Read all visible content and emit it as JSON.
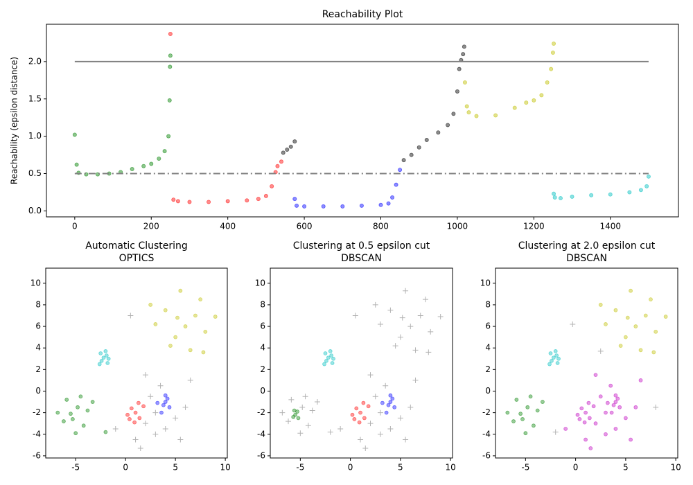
{
  "chart_data": [
    {
      "type": "scatter",
      "title": "Reachability Plot",
      "y_label": "Reachability (epsilon distance)",
      "xlim": [
        -74,
        1578
      ],
      "ylim": [
        -0.08,
        2.5
      ],
      "xticks": [
        0,
        200,
        400,
        600,
        800,
        1000,
        1200,
        1400
      ],
      "yticks": [
        {
          "value": 0,
          "label": "0.0"
        },
        {
          "value": 0.5,
          "label": "0.5"
        },
        {
          "value": 1,
          "label": "1.0"
        },
        {
          "value": 1.5,
          "label": "1.5"
        },
        {
          "value": 2,
          "label": "2.0"
        }
      ],
      "hlines": [
        {
          "y": 2,
          "xmin": 0,
          "xmax": 1500,
          "style": "solid",
          "color": "#808080"
        },
        {
          "y": 0.5,
          "xmin": 0,
          "xmax": 1500,
          "style": "dashdot",
          "color": "#808080"
        }
      ],
      "series": [
        {
          "color": "#008000",
          "marker": "o",
          "alpha": 0.45,
          "x": [
            0,
            5,
            10,
            30,
            60,
            90,
            120,
            150,
            180,
            200,
            220,
            235,
            245,
            248,
            249,
            250
          ],
          "y": [
            1.02,
            0.62,
            0.51,
            0.49,
            0.49,
            0.5,
            0.52,
            0.56,
            0.6,
            0.63,
            0.7,
            0.8,
            1.0,
            1.48,
            1.93,
            2.08
          ]
        },
        {
          "color": "#ff0000",
          "marker": "o",
          "alpha": 0.45,
          "x": [
            250,
            258,
            270,
            300,
            350,
            400,
            450,
            480,
            500,
            515,
            525,
            530,
            540
          ],
          "y": [
            2.37,
            0.15,
            0.13,
            0.12,
            0.12,
            0.13,
            0.14,
            0.16,
            0.2,
            0.33,
            0.52,
            0.6,
            0.66
          ]
        },
        {
          "color": "#000000",
          "marker": "o",
          "alpha": 0.45,
          "x": [
            545,
            555,
            565,
            575,
            860,
            880,
            900,
            920,
            950,
            975,
            990,
            1000,
            1005,
            1010,
            1015,
            1018
          ],
          "y": [
            0.78,
            0.82,
            0.86,
            0.93,
            0.68,
            0.75,
            0.85,
            0.95,
            1.05,
            1.15,
            1.3,
            1.6,
            1.9,
            2.02,
            2.1,
            2.2
          ]
        },
        {
          "color": "#0000ff",
          "marker": "o",
          "alpha": 0.45,
          "x": [
            575,
            580,
            600,
            650,
            700,
            750,
            800,
            820,
            830,
            840,
            850
          ],
          "y": [
            0.16,
            0.07,
            0.06,
            0.06,
            0.06,
            0.07,
            0.08,
            0.1,
            0.18,
            0.35,
            0.55
          ]
        },
        {
          "color": "#bfbf00",
          "marker": "o",
          "alpha": 0.45,
          "x": [
            1020,
            1025,
            1030,
            1050,
            1100,
            1150,
            1180,
            1200,
            1220,
            1235,
            1245,
            1250,
            1252
          ],
          "y": [
            1.72,
            1.4,
            1.32,
            1.27,
            1.28,
            1.38,
            1.45,
            1.48,
            1.55,
            1.72,
            1.9,
            2.12,
            2.24
          ]
        },
        {
          "color": "#00bfbf",
          "marker": "o",
          "alpha": 0.45,
          "x": [
            1252,
            1255,
            1270,
            1300,
            1350,
            1400,
            1450,
            1480,
            1495,
            1500
          ],
          "y": [
            0.23,
            0.18,
            0.17,
            0.19,
            0.21,
            0.22,
            0.25,
            0.28,
            0.33,
            0.46
          ]
        }
      ]
    },
    {
      "type": "scatter",
      "title": "Automatic Clustering",
      "subtitle": "OPTICS",
      "xlim": [
        -8,
        10.2
      ],
      "ylim": [
        -6.2,
        11.4
      ],
      "xticks": [
        -5,
        0,
        5,
        10
      ],
      "yticks": [
        -6,
        -4,
        -2,
        0,
        2,
        4,
        6,
        8,
        10
      ],
      "series": [
        {
          "color": "#008000",
          "marker": "o",
          "alpha": 0.4,
          "x": [
            -5.5,
            -4.8,
            -6.2,
            -4.2,
            -5.9,
            -3.8,
            -6.8,
            -5,
            -4.5,
            -5.3,
            -2,
            -3.3
          ],
          "y": [
            -2.1,
            -1.5,
            -2.8,
            -3.2,
            -0.8,
            -1.8,
            -2,
            -3.9,
            -0.5,
            -2.6,
            -3.8,
            -1
          ]
        },
        {
          "color": "#00bfbf",
          "marker": "o",
          "alpha": 0.4,
          "x": [
            -2.2,
            -1.8,
            -2.5,
            -1.9,
            -2.4,
            -2,
            -2.6,
            -1.7
          ],
          "y": [
            3.1,
            2.6,
            3.5,
            3.3,
            2.8,
            3.7,
            2.5,
            3
          ]
        },
        {
          "color": "#ff0000",
          "marker": "o",
          "alpha": 0.4,
          "x": [
            1,
            0.6,
            1.4,
            0.2,
            1.8,
            0.9,
            1.3,
            0.4
          ],
          "y": [
            -2,
            -1.6,
            -2.5,
            -2.2,
            -1.4,
            -2.9,
            -1.1,
            -2.6
          ]
        },
        {
          "color": "#0000ff",
          "marker": "o",
          "alpha": 0.4,
          "x": [
            4,
            3.8,
            4.2,
            3.6,
            4.4,
            4,
            3.2
          ],
          "y": [
            -1,
            -1.3,
            -0.7,
            -2,
            -1.5,
            -0.4,
            -1.1
          ]
        },
        {
          "color": "#bfbf00",
          "marker": "o",
          "alpha": 0.4,
          "x": [
            6,
            4,
            7.5,
            5,
            8,
            3,
            6.5,
            5.5,
            9,
            4.5,
            7,
            2.5,
            7.8,
            5.2
          ],
          "y": [
            6,
            7.5,
            8.5,
            5,
            5.5,
            6.2,
            3.8,
            9.3,
            6.9,
            4.2,
            7,
            8,
            3.6,
            6.8
          ]
        },
        {
          "color": "#000000",
          "marker": "+",
          "alpha": 0.15,
          "x": [
            2,
            3,
            5,
            2.5,
            6,
            1,
            4,
            3.5,
            -1,
            6.5,
            2,
            5.5,
            1.5,
            3,
            0.5
          ],
          "y": [
            -3,
            -4,
            -2.5,
            -0.5,
            -1.5,
            -4.5,
            -3.5,
            0.5,
            -3.5,
            1,
            1.5,
            -4.5,
            -5.3,
            -2,
            7
          ]
        }
      ]
    },
    {
      "type": "scatter",
      "title": "Clustering at 0.5 epsilon cut",
      "subtitle": "DBSCAN",
      "xlim": [
        -8,
        10.2
      ],
      "ylim": [
        -6.2,
        11.4
      ],
      "xticks": [
        -5,
        0,
        5,
        10
      ],
      "yticks": [
        -6,
        -4,
        -2,
        0,
        2,
        4,
        6,
        8,
        10
      ],
      "series": [
        {
          "color": "#000000",
          "marker": "+",
          "alpha": 0.15,
          "x": [
            -4.8,
            -6.2,
            -4.2,
            -5.9,
            -3.8,
            -6.8,
            -5,
            -4.5,
            -2,
            -3.3,
            6,
            4,
            7.5,
            5,
            8,
            3,
            6.5,
            5.5,
            9,
            4.5,
            7,
            2.5,
            7.8,
            5.2,
            2,
            3,
            5,
            2.5,
            6,
            1,
            4,
            3.5,
            -1,
            6.5,
            2,
            5.5,
            1.5,
            3,
            0.5
          ],
          "y": [
            -1.5,
            -2.8,
            -3.2,
            -0.8,
            -1.8,
            -2,
            -3.9,
            -0.5,
            -3.8,
            -1,
            6,
            7.5,
            8.5,
            5,
            5.5,
            6.2,
            3.8,
            9.3,
            6.9,
            4.2,
            7,
            8,
            3.6,
            6.8,
            -3,
            -4,
            -2.5,
            -0.5,
            -1.5,
            -4.5,
            -3.5,
            0.5,
            -3.5,
            1,
            1.5,
            -4.5,
            -5.3,
            -2,
            7
          ]
        },
        {
          "color": "#008000",
          "marker": "o",
          "alpha": 0.4,
          "x": [
            -5.5,
            -5.3,
            -5.7,
            -5.2,
            -5.6
          ],
          "y": [
            -2.2,
            -1.9,
            -2.4,
            -2.5,
            -1.8
          ]
        },
        {
          "color": "#00bfbf",
          "marker": "o",
          "alpha": 0.4,
          "x": [
            -2.2,
            -1.8,
            -2.5,
            -1.9,
            -2.4,
            -2,
            -2.6,
            -1.7
          ],
          "y": [
            3.1,
            2.6,
            3.5,
            3.3,
            2.8,
            3.7,
            2.5,
            3
          ]
        },
        {
          "color": "#ff0000",
          "marker": "o",
          "alpha": 0.4,
          "x": [
            1,
            0.6,
            1.4,
            0.2,
            1.8,
            0.9,
            1.3,
            0.4
          ],
          "y": [
            -2,
            -1.6,
            -2.5,
            -2.2,
            -1.4,
            -2.9,
            -1.1,
            -2.6
          ]
        },
        {
          "color": "#0000ff",
          "marker": "o",
          "alpha": 0.4,
          "x": [
            4,
            3.8,
            4.2,
            3.6,
            4.4,
            4,
            3.2
          ],
          "y": [
            -1,
            -1.3,
            -0.7,
            -2,
            -1.5,
            -0.4,
            -1.1
          ]
        }
      ]
    },
    {
      "type": "scatter",
      "title": "Clustering at 2.0 epsilon cut",
      "subtitle": "DBSCAN",
      "xlim": [
        -8,
        10.2
      ],
      "ylim": [
        -6.2,
        11.4
      ],
      "xticks": [
        -5,
        0,
        5,
        10
      ],
      "yticks": [
        -6,
        -4,
        -2,
        0,
        2,
        4,
        6,
        8,
        10
      ],
      "series": [
        {
          "color": "#008000",
          "marker": "o",
          "alpha": 0.4,
          "x": [
            -5.5,
            -4.8,
            -6.2,
            -4.2,
            -5.9,
            -3.8,
            -6.8,
            -5,
            -4.5,
            -5.3,
            -3.3
          ],
          "y": [
            -2.1,
            -1.5,
            -2.8,
            -3.2,
            -0.8,
            -1.8,
            -2,
            -3.9,
            -0.5,
            -2.6,
            -1
          ]
        },
        {
          "color": "#00bfbf",
          "marker": "o",
          "alpha": 0.4,
          "x": [
            -2.2,
            -1.8,
            -2.5,
            -1.9,
            -2.4,
            -2,
            -2.6,
            -1.7
          ],
          "y": [
            3.1,
            2.6,
            3.5,
            3.3,
            2.8,
            3.7,
            2.5,
            3
          ]
        },
        {
          "color": "#bfbf00",
          "marker": "o",
          "alpha": 0.4,
          "x": [
            6,
            4,
            7.5,
            5,
            8,
            3,
            6.5,
            5.5,
            9,
            4.5,
            7,
            2.5,
            7.8,
            5.2
          ],
          "y": [
            6,
            7.5,
            8.5,
            5,
            5.5,
            6.2,
            3.8,
            9.3,
            6.9,
            4.2,
            7,
            8,
            3.6,
            6.8
          ]
        },
        {
          "color": "#bf00bf",
          "marker": "o",
          "alpha": 0.4,
          "x": [
            1,
            0.6,
            1.4,
            0.2,
            1.8,
            0.9,
            1.3,
            0.4,
            4,
            3.8,
            4.2,
            3.6,
            4.4,
            4,
            3.2,
            2,
            3,
            5,
            2.5,
            6,
            1,
            4,
            3.5,
            -1,
            6.5,
            2,
            5.5,
            1.5,
            3
          ],
          "y": [
            -2,
            -1.6,
            -2.5,
            -2.2,
            -1.4,
            -2.9,
            -1.1,
            -2.6,
            -1,
            -1.3,
            -0.7,
            -2,
            -1.5,
            -0.4,
            -1.1,
            -3,
            -4,
            -2.5,
            -0.5,
            -1.5,
            -4.5,
            -3.5,
            0.5,
            -3.5,
            1,
            1.5,
            -4.5,
            -5.3,
            -2
          ]
        },
        {
          "color": "#000000",
          "marker": "+",
          "alpha": 0.15,
          "x": [
            -0.3,
            2.5,
            8,
            -2
          ],
          "y": [
            6.2,
            3.7,
            -1.5,
            -3.8
          ]
        }
      ]
    }
  ]
}
